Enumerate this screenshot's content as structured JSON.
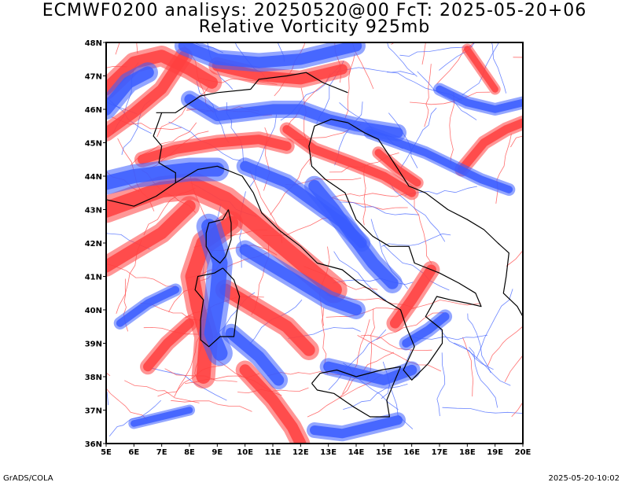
{
  "title_line1": "ECMWF0200 analisys: 20250520@00 FcT: 2025-05-20+06",
  "title_line2": "Relative Vorticity 925mb",
  "footer_left": "GrADS/COLA",
  "footer_right": "2025-05-20-10:02",
  "colors": {
    "positive_vorticity": "#ff4040",
    "negative_vorticity": "#3a5cff",
    "coastline": "#000000",
    "frame": "#000000",
    "background": "#ffffff"
  },
  "map": {
    "projection": "latlon",
    "lon_range": [
      5,
      20
    ],
    "lat_range": [
      36,
      48
    ],
    "x_ticks": [
      "5E",
      "6E",
      "7E",
      "8E",
      "9E",
      "10E",
      "11E",
      "12E",
      "13E",
      "14E",
      "15E",
      "16E",
      "17E",
      "18E",
      "19E",
      "20E"
    ],
    "y_ticks": [
      "36N",
      "37N",
      "38N",
      "39N",
      "40N",
      "41N",
      "42N",
      "43N",
      "44N",
      "45N",
      "46N",
      "47N",
      "48N"
    ]
  }
}
